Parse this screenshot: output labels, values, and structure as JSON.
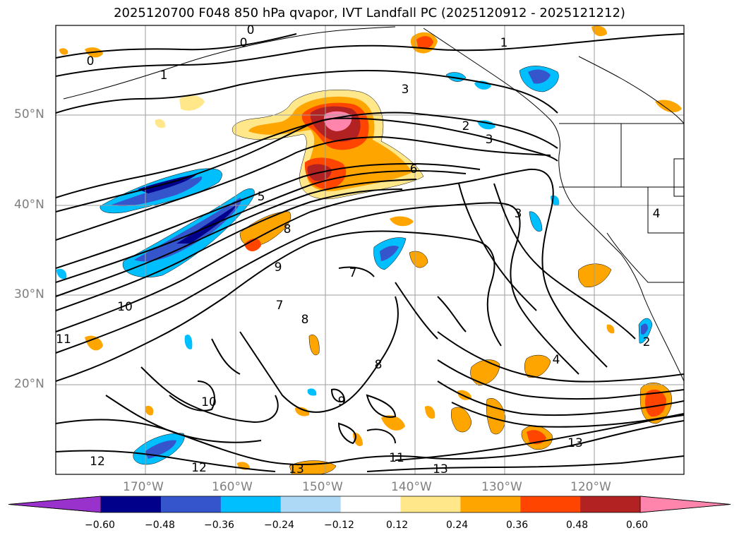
{
  "title": "2025120700 F048 850 hPa qvapor, IVT Landfall PC (2025120912 - 2025121212)",
  "lat_labels": [
    "50°N",
    "40°N",
    "30°N",
    "20°N"
  ],
  "lon_labels": [
    "170°W",
    "160°W",
    "150°W",
    "140°W",
    "130°W",
    "120°W"
  ],
  "colorbar": {
    "ticks": [
      "−0.60",
      "−0.48",
      "−0.36",
      "−0.24",
      "−0.12",
      "0.12",
      "0.24",
      "0.36",
      "0.48",
      "0.60"
    ],
    "colors": [
      "#9932cc",
      "#00008b",
      "#3455cc",
      "#00bfff",
      "#add8f6",
      "#ffffff",
      "#ffe78a",
      "#ffa500",
      "#ff4500",
      "#b22222",
      "#ff85ac"
    ]
  },
  "contour_labels": [
    "0",
    "0",
    "0",
    "1",
    "1",
    "2",
    "2",
    "3",
    "3",
    "3",
    "4",
    "4",
    "5",
    "6",
    "7",
    "7",
    "8",
    "8",
    "8",
    "9",
    "9",
    "10",
    "10",
    "11",
    "11",
    "12",
    "12",
    "13",
    "13",
    "13"
  ]
}
